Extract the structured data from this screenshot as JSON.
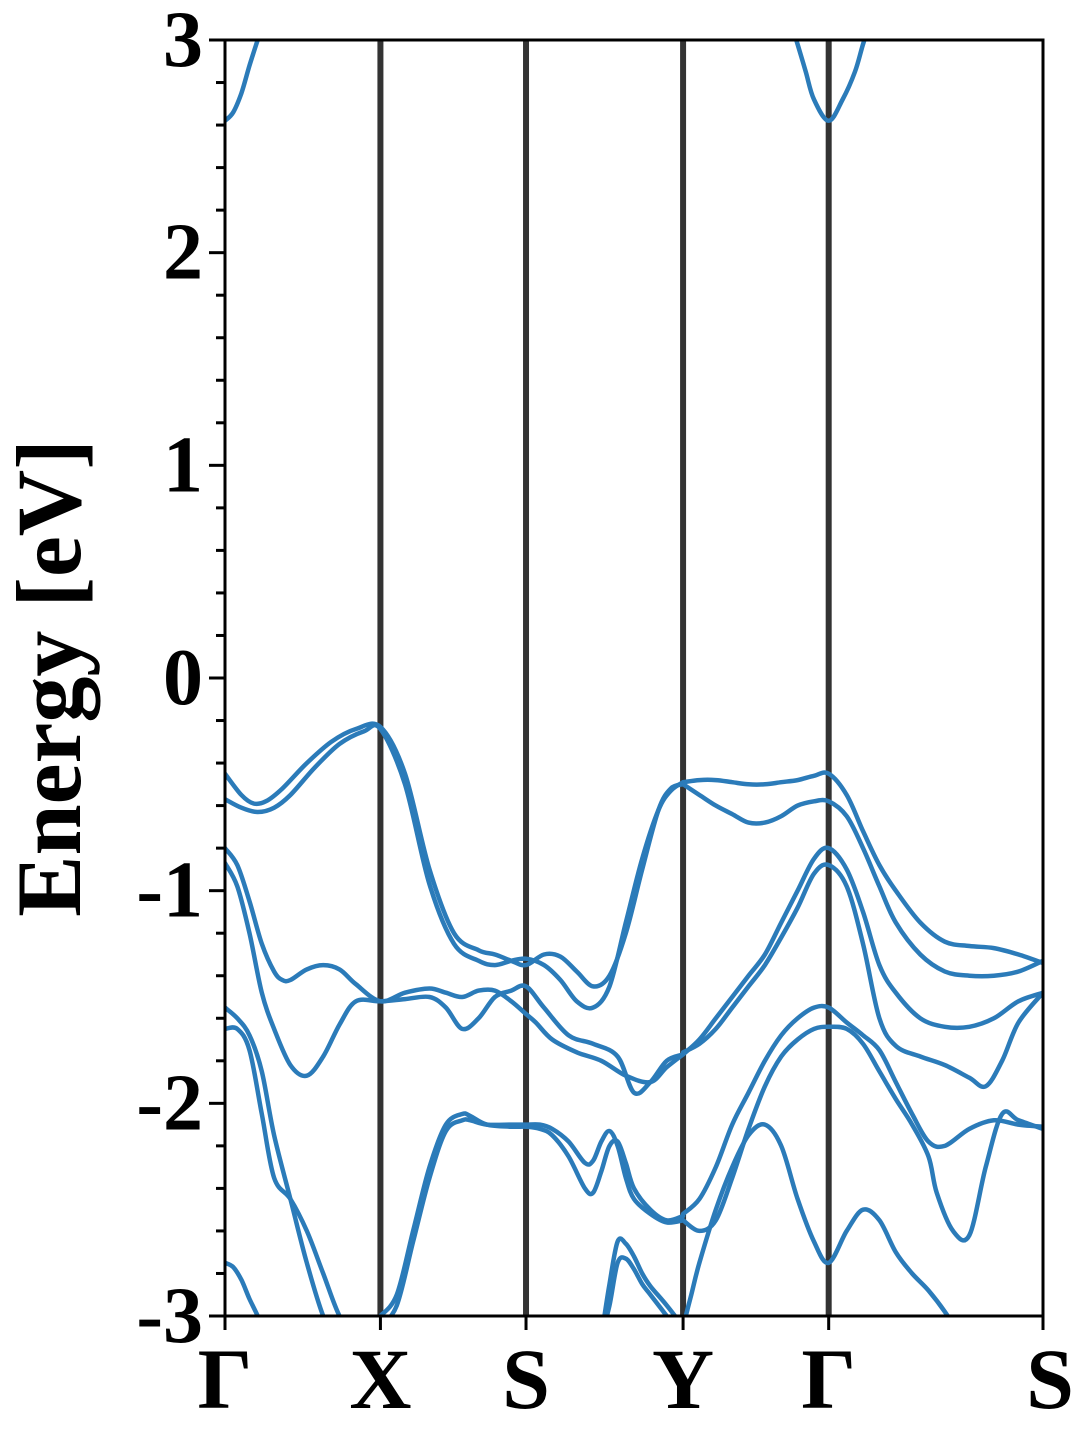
{
  "chart_data": {
    "type": "line",
    "title": "",
    "xlabel": "",
    "ylabel": "Energy [eV]",
    "ylim": [
      -3,
      3
    ],
    "y_ticks": [
      "3",
      "2",
      "1",
      "0",
      "-1",
      "-2",
      "-3"
    ],
    "y_tick_values": [
      3,
      2,
      1,
      0,
      -1,
      -2,
      -3
    ],
    "y_minor_step": 0.2,
    "k_path": [
      {
        "label": "Γ",
        "k": 0
      },
      {
        "label": "X",
        "k": 0.19
      },
      {
        "label": "S",
        "k": 0.368
      },
      {
        "label": "Y",
        "k": 0.56
      },
      {
        "label": "Γ",
        "k": 0.738
      },
      {
        "label": "S",
        "k": 1.0
      }
    ],
    "high_symmetry_lines": [
      0.19,
      0.368,
      0.56,
      0.738
    ],
    "grid": false,
    "line_color": "#2b7bb9",
    "divider_color": "#333333",
    "series": [
      {
        "x": [
          0,
          0.02,
          0.035,
          0.05,
          0.07,
          0.1,
          0.13,
          0.16,
          0.19,
          0.22,
          0.25,
          0.28,
          0.31,
          0.33,
          0.35,
          0.368,
          0.39,
          0.41,
          0.43,
          0.45,
          0.47,
          0.49,
          0.51,
          0.53,
          0.545,
          0.56
        ],
        "y": [
          -0.45,
          -0.55,
          -0.59,
          -0.58,
          -0.52,
          -0.4,
          -0.3,
          -0.24,
          -0.23,
          -0.45,
          -0.9,
          -1.2,
          -1.28,
          -1.3,
          -1.33,
          -1.35,
          -1.3,
          -1.31,
          -1.38,
          -1.45,
          -1.4,
          -1.2,
          -0.9,
          -0.62,
          -0.52,
          -0.5
        ]
      },
      {
        "x": [
          0,
          0.02,
          0.04,
          0.06,
          0.08,
          0.11,
          0.14,
          0.17,
          0.19,
          0.22,
          0.25,
          0.28,
          0.31,
          0.33,
          0.35,
          0.368,
          0.39,
          0.41,
          0.43,
          0.45,
          0.47,
          0.49,
          0.51,
          0.53,
          0.545,
          0.56
        ],
        "y": [
          -0.57,
          -0.61,
          -0.63,
          -0.61,
          -0.55,
          -0.42,
          -0.31,
          -0.25,
          -0.24,
          -0.5,
          -0.97,
          -1.25,
          -1.33,
          -1.35,
          -1.33,
          -1.32,
          -1.35,
          -1.42,
          -1.52,
          -1.55,
          -1.45,
          -1.15,
          -0.85,
          -0.62,
          -0.53,
          -0.49
        ]
      },
      {
        "x": [
          0,
          0.015,
          0.03,
          0.045,
          0.06,
          0.07,
          0.08,
          0.1,
          0.12,
          0.14,
          0.16,
          0.19,
          0.22,
          0.25,
          0.27,
          0.29,
          0.31,
          0.33,
          0.35,
          0.368,
          0.38,
          0.4,
          0.43,
          0.46,
          0.49,
          0.52,
          0.54,
          0.56
        ],
        "y": [
          -0.8,
          -0.88,
          -1.05,
          -1.25,
          -1.38,
          -1.42,
          -1.42,
          -1.37,
          -1.35,
          -1.37,
          -1.44,
          -1.52,
          -1.48,
          -1.46,
          -1.48,
          -1.5,
          -1.47,
          -1.47,
          -1.52,
          -1.58,
          -1.62,
          -1.7,
          -1.76,
          -1.8,
          -1.87,
          -1.9,
          -1.83,
          -1.77
        ]
      },
      {
        "x": [
          0,
          0.015,
          0.03,
          0.045,
          0.06,
          0.08,
          0.1,
          0.12,
          0.14,
          0.16,
          0.19,
          0.22,
          0.25,
          0.27,
          0.29,
          0.31,
          0.33,
          0.35,
          0.368,
          0.39,
          0.42,
          0.45,
          0.48,
          0.5,
          0.52,
          0.54,
          0.56
        ],
        "y": [
          -0.87,
          -0.98,
          -1.2,
          -1.48,
          -1.65,
          -1.82,
          -1.87,
          -1.78,
          -1.63,
          -1.52,
          -1.52,
          -1.51,
          -1.5,
          -1.55,
          -1.65,
          -1.6,
          -1.5,
          -1.47,
          -1.45,
          -1.55,
          -1.68,
          -1.72,
          -1.78,
          -1.95,
          -1.9,
          -1.8,
          -1.77
        ]
      },
      {
        "x": [
          0,
          0.015,
          0.03,
          0.045,
          0.06,
          0.08,
          0.1,
          0.12,
          0.14,
          0.16,
          0.19
        ],
        "y": [
          -1.55,
          -1.6,
          -1.68,
          -1.85,
          -2.15,
          -2.45,
          -2.75,
          -3.0,
          -3.15,
          -3.1,
          -3.0
        ]
      },
      {
        "x": [
          0,
          0.015,
          0.03,
          0.045,
          0.06,
          0.08,
          0.1,
          0.12,
          0.14,
          0.16,
          0.19
        ],
        "y": [
          -1.65,
          -1.65,
          -1.75,
          -2.05,
          -2.35,
          -2.45,
          -2.6,
          -2.8,
          -3.0,
          -3.1,
          -3.05
        ]
      },
      {
        "x": [
          0,
          0.01,
          0.02,
          0.03,
          0.04,
          0.045
        ],
        "y": [
          -2.75,
          -2.77,
          -2.83,
          -2.92,
          -3.0,
          -3.05
        ]
      },
      {
        "x": [
          0,
          0.01,
          0.02,
          0.03,
          0.04,
          0.05
        ],
        "y": [
          2.62,
          2.66,
          2.75,
          2.88,
          3.0,
          3.1
        ]
      },
      {
        "x": [
          0.19,
          0.21,
          0.23,
          0.25,
          0.27,
          0.29,
          0.3,
          0.32,
          0.35,
          0.368,
          0.385,
          0.4,
          0.42,
          0.44,
          0.45,
          0.46,
          0.47,
          0.48,
          0.49,
          0.5,
          0.52,
          0.54,
          0.56
        ],
        "y": [
          -3.0,
          -2.9,
          -2.6,
          -2.3,
          -2.1,
          -2.05,
          -2.06,
          -2.1,
          -2.11,
          -2.11,
          -2.12,
          -2.15,
          -2.25,
          -2.4,
          -2.42,
          -2.32,
          -2.2,
          -2.18,
          -2.28,
          -2.4,
          -2.5,
          -2.55,
          -2.53
        ]
      },
      {
        "x": [
          0.19,
          0.21,
          0.23,
          0.25,
          0.27,
          0.29,
          0.3,
          0.32,
          0.35,
          0.368,
          0.385,
          0.4,
          0.42,
          0.44,
          0.45,
          0.46,
          0.47,
          0.48,
          0.49,
          0.5,
          0.52,
          0.54,
          0.56
        ],
        "y": [
          -3.05,
          -2.95,
          -2.65,
          -2.35,
          -2.13,
          -2.08,
          -2.08,
          -2.1,
          -2.1,
          -2.1,
          -2.1,
          -2.12,
          -2.18,
          -2.28,
          -2.27,
          -2.18,
          -2.13,
          -2.2,
          -2.35,
          -2.45,
          -2.52,
          -2.56,
          -2.55
        ]
      },
      {
        "x": [
          0.46,
          0.47,
          0.48,
          0.49,
          0.5,
          0.51,
          0.52,
          0.54,
          0.56
        ],
        "y": [
          -3.1,
          -2.85,
          -2.65,
          -2.66,
          -2.72,
          -2.8,
          -2.86,
          -2.95,
          -3.05
        ]
      },
      {
        "x": [
          0.46,
          0.47,
          0.48,
          0.49,
          0.5,
          0.51,
          0.52,
          0.54,
          0.56
        ],
        "y": [
          -3.1,
          -2.95,
          -2.75,
          -2.73,
          -2.78,
          -2.85,
          -2.9,
          -3.0,
          -3.1
        ]
      },
      {
        "x": [
          0.56,
          0.58,
          0.6,
          0.62,
          0.64,
          0.66,
          0.68,
          0.7,
          0.72,
          0.738,
          0.76,
          0.78,
          0.8,
          0.82,
          0.85,
          0.88,
          0.91,
          0.94,
          0.97,
          1.0
        ],
        "y": [
          -0.49,
          -0.48,
          -0.48,
          -0.49,
          -0.5,
          -0.5,
          -0.49,
          -0.48,
          -0.46,
          -0.45,
          -0.55,
          -0.72,
          -0.88,
          -1.0,
          -1.15,
          -1.24,
          -1.26,
          -1.27,
          -1.3,
          -1.34
        ]
      },
      {
        "x": [
          0.56,
          0.58,
          0.6,
          0.62,
          0.64,
          0.66,
          0.68,
          0.7,
          0.72,
          0.738,
          0.76,
          0.78,
          0.8,
          0.82,
          0.85,
          0.88,
          0.91,
          0.94,
          0.97,
          1.0
        ],
        "y": [
          -0.5,
          -0.55,
          -0.6,
          -0.64,
          -0.68,
          -0.68,
          -0.65,
          -0.6,
          -0.58,
          -0.58,
          -0.65,
          -0.8,
          -0.98,
          -1.15,
          -1.3,
          -1.38,
          -1.4,
          -1.4,
          -1.38,
          -1.33
        ]
      },
      {
        "x": [
          0.56,
          0.58,
          0.6,
          0.62,
          0.64,
          0.66,
          0.68,
          0.7,
          0.72,
          0.738,
          0.76,
          0.78,
          0.8,
          0.82,
          0.85,
          0.88,
          0.91,
          0.94,
          0.97,
          1.0
        ],
        "y": [
          -1.77,
          -1.7,
          -1.6,
          -1.5,
          -1.4,
          -1.3,
          -1.15,
          -1.0,
          -0.85,
          -0.8,
          -0.9,
          -1.1,
          -1.35,
          -1.48,
          -1.6,
          -1.64,
          -1.64,
          -1.6,
          -1.52,
          -1.48
        ]
      },
      {
        "x": [
          0.56,
          0.58,
          0.6,
          0.62,
          0.64,
          0.66,
          0.68,
          0.7,
          0.72,
          0.738,
          0.76,
          0.78,
          0.8,
          0.82,
          0.85,
          0.88,
          0.91,
          0.93,
          0.95,
          0.97,
          1.0
        ],
        "y": [
          -1.76,
          -1.72,
          -1.65,
          -1.55,
          -1.45,
          -1.35,
          -1.22,
          -1.08,
          -0.92,
          -0.88,
          -0.98,
          -1.25,
          -1.6,
          -1.73,
          -1.78,
          -1.82,
          -1.88,
          -1.92,
          -1.8,
          -1.62,
          -1.48
        ]
      },
      {
        "x": [
          0.56,
          0.58,
          0.6,
          0.62,
          0.64,
          0.66,
          0.68,
          0.7,
          0.72,
          0.738,
          0.76,
          0.78,
          0.8,
          0.82,
          0.84,
          0.86,
          0.88,
          0.91,
          0.94,
          0.97,
          1.0
        ],
        "y": [
          -2.52,
          -2.45,
          -2.3,
          -2.1,
          -1.95,
          -1.8,
          -1.68,
          -1.6,
          -1.55,
          -1.55,
          -1.62,
          -1.68,
          -1.75,
          -1.9,
          -2.05,
          -2.18,
          -2.2,
          -2.12,
          -2.08,
          -2.1,
          -2.11
        ]
      },
      {
        "x": [
          0.56,
          0.58,
          0.6,
          0.62,
          0.64,
          0.66,
          0.68,
          0.7,
          0.72,
          0.738,
          0.76,
          0.78,
          0.8,
          0.82,
          0.84,
          0.86,
          0.87,
          0.89,
          0.91,
          0.93,
          0.95,
          0.97,
          1.0
        ],
        "y": [
          -2.55,
          -2.6,
          -2.55,
          -2.35,
          -2.12,
          -1.92,
          -1.78,
          -1.7,
          -1.65,
          -1.64,
          -1.65,
          -1.72,
          -1.85,
          -1.98,
          -2.1,
          -2.25,
          -2.42,
          -2.6,
          -2.62,
          -2.3,
          -2.05,
          -2.08,
          -2.12
        ]
      },
      {
        "x": [
          0.56,
          0.57,
          0.58,
          0.6,
          0.62,
          0.64,
          0.66,
          0.68,
          0.7,
          0.72,
          0.738,
          0.76,
          0.78,
          0.8,
          0.82,
          0.84,
          0.86,
          0.88,
          0.9
        ],
        "y": [
          -3.05,
          -2.9,
          -2.75,
          -2.5,
          -2.3,
          -2.15,
          -2.1,
          -2.2,
          -2.45,
          -2.65,
          -2.75,
          -2.6,
          -2.5,
          -2.55,
          -2.7,
          -2.8,
          -2.88,
          -2.98,
          -3.1
        ]
      },
      {
        "x": [
          0.69,
          0.7,
          0.71,
          0.72,
          0.738,
          0.755,
          0.77,
          0.78,
          0.79
        ],
        "y": [
          3.1,
          2.98,
          2.85,
          2.72,
          2.62,
          2.72,
          2.85,
          2.98,
          3.1
        ]
      }
    ]
  }
}
